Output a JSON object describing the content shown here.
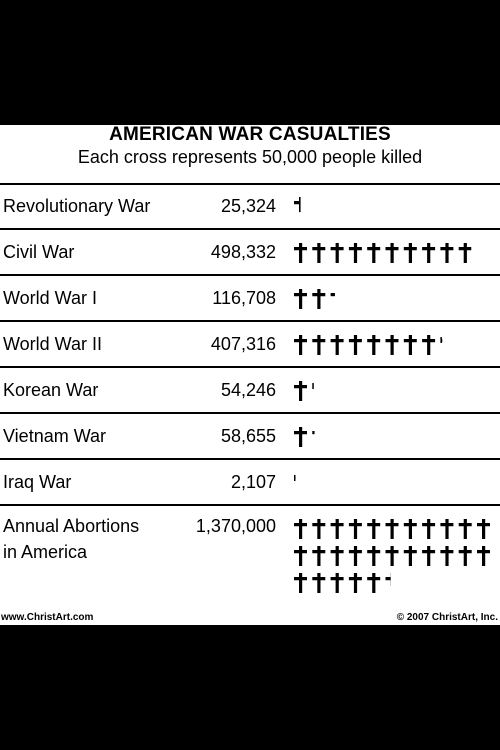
{
  "chart_data": {
    "type": "table",
    "title": "AMERICAN WAR CASUALTIES",
    "subtitle": "Each cross represents 50,000 people killed",
    "unit_per_icon": 50000,
    "rows": [
      {
        "label": "Revolutionary War",
        "display": "25,324",
        "value": 25324
      },
      {
        "label": "Civil War",
        "display": "498,332",
        "value": 498332
      },
      {
        "label": "World War I",
        "display": "116,708",
        "value": 116708
      },
      {
        "label": "World War II",
        "display": "407,316",
        "value": 407316
      },
      {
        "label": "Korean War",
        "display": "54,246",
        "value": 54246
      },
      {
        "label": "Vietnam War",
        "display": "58,655",
        "value": 58655
      },
      {
        "label": "Iraq War",
        "display": "2,107",
        "value": 2107
      },
      {
        "label": "Annual Abortions\nin America",
        "display": "1,370,000",
        "value": 1370000
      }
    ]
  },
  "footer": {
    "left": "www.ChristArt.com",
    "right": "© 2007 ChristArt, Inc."
  }
}
